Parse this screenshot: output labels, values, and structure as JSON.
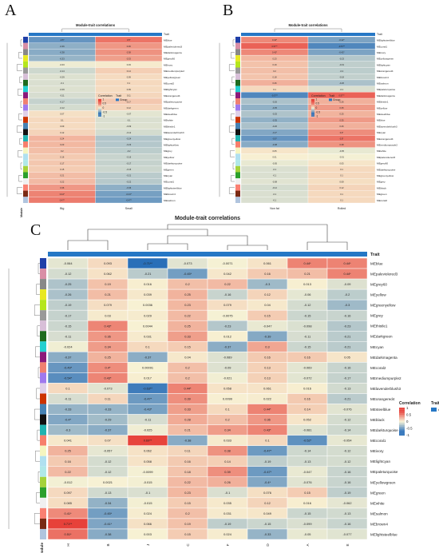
{
  "panel_letters": {
    "a": "A",
    "b": "B",
    "c": "C"
  },
  "colors": {
    "high": "#e7413a",
    "mid": "#f7f2d4",
    "low": "#2a6fb8",
    "trait_bar": "#2577c5",
    "text": "#222222"
  },
  "chart_data": [
    {
      "panel": "A",
      "type": "heatmap",
      "title": "Module-trait correlations",
      "trait_header": "Trait",
      "xlabel": "Module",
      "x_categories": [
        "Big",
        "Small"
      ],
      "rows": [
        "MEblue",
        "MEpaleviolered3",
        "MEdarkmagenta",
        "MEgrey60",
        "MEivory",
        "MEmediumpurple2",
        "MEyellowgreen",
        "MEcoral2",
        "MElightcyan",
        "MEorangered4",
        "MEpaleturquoise",
        "MEdarkgreen",
        "MEsteelblue",
        "MEwhite",
        "MEthistle1",
        "MElavenderblush3",
        "MEgreenyellow",
        "MElightyellow",
        "MEgrey",
        "MEyellow",
        "MEdarkturquoise",
        "MEgreen",
        "MEcyan",
        "MEcoral1",
        "MElightsteelblue",
        "MEbrown4",
        "MEsalmon"
      ],
      "values": [
        [
          -0.5,
          0.5
        ],
        [
          -0.36,
          0.36
        ],
        [
          -0.38,
          0.38
        ],
        [
          -0.33,
          0.33
        ],
        [
          -0.03,
          0.03
        ],
        [
          -0.14,
          0.14
        ],
        [
          -0.09,
          0.09
        ],
        [
          -0.1,
          0.1
        ],
        [
          -0.09,
          0.09
        ],
        [
          -0.11,
          0.11
        ],
        [
          -0.17,
          0.17
        ],
        [
          -0.12,
          0.12
        ],
        [
          0.07,
          -0.07
        ],
        [
          0.1,
          -0.1
        ],
        [
          0.09,
          -0.09
        ],
        [
          0.12,
          -0.12
        ],
        [
          0.24,
          -0.24
        ],
        [
          0.23,
          -0.23
        ],
        [
          0.2,
          -0.2
        ],
        [
          0.16,
          -0.16
        ],
        [
          0.17,
          -0.17
        ],
        [
          0.15,
          -0.15
        ],
        [
          0.21,
          -0.21
        ],
        [
          0.22,
          -0.22
        ],
        [
          0.36,
          -0.36
        ],
        [
          0.44,
          -0.44
        ],
        [
          0.47,
          -0.47
        ]
      ],
      "legend": {
        "title": "Correlation",
        "ticks": [
          "1",
          "0.5",
          "0",
          "-0.5",
          "-1"
        ],
        "trait_title": "Trait",
        "trait_label": "Group"
      }
    },
    {
      "panel": "B",
      "type": "heatmap",
      "title": "Module-trait correlations",
      "trait_header": "Trait",
      "x_categories": [
        "Non fat",
        "Rolled"
      ],
      "rows": [
        "MElightsteelblue",
        "MEcoral1",
        "MEivory",
        "MEyellowgreen",
        "MElightcyan",
        "MEorangered4",
        "MEbrown4",
        "MEsalmon",
        "MEpaleturquoise",
        "MEdarkmagenta",
        "MEthistle1",
        "MEyellow",
        "MEsteelblue",
        "MEblue",
        "MElavenderblush3",
        "MEcyan",
        "MEorangered4",
        "MEmediumpurple2",
        "MEwhite",
        "MEpaleviolered3",
        "MEgrey60",
        "MEdarkturquoise",
        "MEgreenyellow",
        "MEgrey",
        "MEblack",
        "MEgreen",
        "MEcoral2"
      ],
      "values": [
        [
          0.42,
          -0.42
        ],
        [
          0.57,
          -0.57
        ],
        [
          0.42,
          -0.42
        ],
        [
          0.23,
          -0.23
        ],
        [
          0.19,
          -0.19
        ],
        [
          0.2,
          -0.2
        ],
        [
          0.18,
          -0.18
        ],
        [
          0.26,
          -0.26
        ],
        [
          0.1,
          -0.1
        ],
        [
          -0.57,
          0.57
        ],
        [
          -0.26,
          0.26
        ],
        [
          -0.35,
          0.35
        ],
        [
          -0.25,
          0.25
        ],
        [
          -0.35,
          0.35
        ],
        [
          -0.26,
          0.26
        ],
        [
          -0.4,
          0.4
        ],
        [
          -0.5,
          0.5
        ],
        [
          -0.38,
          0.38
        ],
        [
          0.05,
          -0.05
        ],
        [
          0.01,
          -0.01
        ],
        [
          -0.05,
          0.05
        ],
        [
          -0.1,
          0.1
        ],
        [
          -0.1,
          0.1
        ],
        [
          -0.08,
          0.08
        ],
        [
          -0.12,
          0.12
        ],
        [
          -0.1,
          0.1
        ],
        [
          -0.1,
          0.1
        ]
      ],
      "legend": {
        "title": "Correlation",
        "ticks": [
          "1",
          "0.5",
          "0",
          "-0.5",
          "-1"
        ],
        "trait_title": "Trait",
        "trait_label": "Group"
      }
    },
    {
      "panel": "C",
      "type": "heatmap",
      "title": "Module-trait correlations",
      "trait_header": "Trait",
      "xlabel": "Module",
      "x_categories": [
        "H",
        "B",
        "J",
        "C",
        "F",
        "D",
        "A",
        "E"
      ],
      "rows": [
        "MEblue",
        "MEpaleviolered3",
        "MEgrey60",
        "MEyellow",
        "MEgreenyellow",
        "MEgrey",
        "MEthistle1",
        "MEdarkgreen",
        "MEcyan",
        "MEdarkmagenta",
        "MEcoral2",
        "MEmediumpurple2",
        "MElavenderblush3",
        "MEorangered4",
        "MEsteelblue",
        "MEblack",
        "MEdarkturquoise",
        "MEcoral1",
        "MEivory",
        "MElightcyan",
        "MEpaleturquoise",
        "MEyellowgreen",
        "MEgreen",
        "MEwhite",
        "MEsalmon",
        "MEbrown4",
        "MElightsteelblue"
      ],
      "values": [
        [
          -0.064,
          0.093,
          -0.71,
          -0.073,
          -0.0071,
          0.061,
          0.44,
          0.44
        ],
        [
          -0.12,
          0.062,
          -0.21,
          -0.45,
          0.042,
          0.16,
          0.21,
          0.44
        ],
        [
          -0.25,
          0.19,
          0.016,
          0.2,
          0.22,
          -0.3,
          0.013,
          -0.09
        ],
        [
          -0.26,
          0.21,
          0.039,
          0.25,
          -0.16,
          0.12,
          -0.06,
          -0.2
        ],
        [
          -0.19,
          0.079,
          0.0036,
          0.23,
          0.079,
          0.04,
          -0.12,
          -0.3
        ],
        [
          -0.17,
          0.03,
          0.029,
          0.22,
          -0.0075,
          0.15,
          -0.15,
          -0.16
        ],
        [
          -0.15,
          0.43,
          0.0044,
          0.25,
          -0.23,
          -0.047,
          -0.098,
          -0.23
        ],
        [
          -0.11,
          0.36,
          0.031,
          0.33,
          0.012,
          -0.39,
          -0.11,
          -0.21
        ],
        [
          -0.024,
          0.34,
          0.1,
          0.15,
          -0.37,
          0.3,
          -0.15,
          -0.21
        ],
        [
          -0.37,
          0.25,
          -0.37,
          0.04,
          -0.089,
          0.16,
          0.16,
          0.05
        ],
        [
          -0.49,
          0.4,
          0.00091,
          0.2,
          -0.09,
          0.13,
          -0.069,
          -0.16
        ],
        [
          -0.54,
          0.43,
          0.017,
          0.2,
          -0.021,
          0.13,
          -0.072,
          -0.17
        ],
        [
          0.1,
          -0.073,
          -0.63,
          0.44,
          0.058,
          0.061,
          0.016,
          -0.13
        ],
        [
          -0.11,
          0.11,
          -0.47,
          0.39,
          0.0099,
          0.022,
          0.16,
          -0.21
        ],
        [
          -0.33,
          -0.33,
          -0.43,
          0.33,
          0.1,
          0.44,
          0.14,
          -0.076
        ],
        [
          -0.4,
          -0.29,
          -0.11,
          0.28,
          0.2,
          0.36,
          0.052,
          -0.12
        ],
        [
          -0.3,
          -0.37,
          -0.025,
          0.21,
          0.34,
          0.43,
          -0.081,
          -0.14
        ],
        [
          0.041,
          0.07,
          0.69,
          -0.38,
          0.033,
          0.1,
          -0.52,
          -0.054
        ],
        [
          0.25,
          -0.057,
          0.062,
          0.11,
          0.38,
          -0.47,
          -0.14,
          -0.12
        ],
        [
          0.16,
          -0.12,
          0.058,
          0.16,
          0.14,
          -0.19,
          -0.13,
          -0.12
        ],
        [
          0.22,
          -0.12,
          -0.0099,
          0.18,
          0.39,
          -0.47,
          -0.047,
          -0.16
        ],
        [
          -0.012,
          0.0021,
          -0.015,
          0.22,
          0.26,
          -0.4,
          -0.076,
          -0.16
        ],
        [
          0.097,
          -0.13,
          -0.1,
          0.23,
          -0.1,
          0.076,
          0.15,
          -0.19
        ],
        [
          0.085,
          -0.34,
          -0.015,
          0.15,
          0.035,
          0.12,
          0.016,
          -0.062
        ],
        [
          0.41,
          -0.45,
          0.024,
          0.2,
          0.031,
          0.049,
          -0.15,
          -0.13
        ],
        [
          0.71,
          -0.41,
          0.066,
          0.19,
          -0.19,
          -0.15,
          -0.099,
          -0.16
        ],
        [
          0.51,
          -0.38,
          0.003,
          0.15,
          0.024,
          -0.33,
          -0.05,
          -0.077
        ]
      ],
      "legend": {
        "title": "Correlation",
        "ticks": [
          "1",
          "0.5",
          "0",
          "-0.5",
          "-1"
        ],
        "trait_title": "Trait",
        "trait_label": "Group"
      }
    }
  ]
}
